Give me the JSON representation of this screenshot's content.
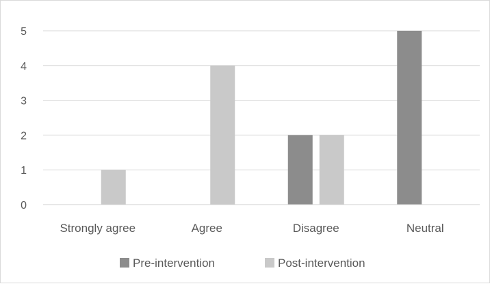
{
  "chart_data": {
    "type": "bar",
    "categories": [
      "Strongly agree",
      "Agree",
      "Disagree",
      "Neutral"
    ],
    "series": [
      {
        "name": "Pre-intervention",
        "values": [
          0,
          0,
          2,
          5
        ],
        "color": "#8c8c8c"
      },
      {
        "name": "Post-intervention",
        "values": [
          1,
          4,
          2,
          0
        ],
        "color": "#c9c9c9"
      }
    ],
    "yticks": [
      0,
      1,
      2,
      3,
      4,
      5
    ],
    "ylim": [
      0,
      5
    ],
    "grid": true,
    "legend_position": "bottom",
    "title": "",
    "xlabel": "",
    "ylabel": ""
  }
}
